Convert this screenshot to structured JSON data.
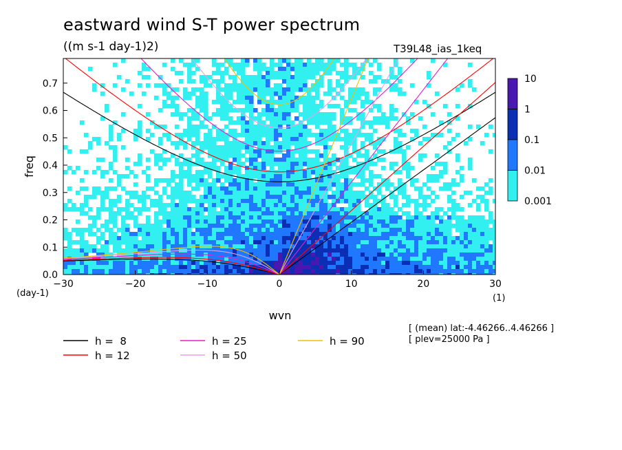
{
  "title": "eastward wind S-T power spectrum",
  "subtitle": "((m s-1 day-1)2)",
  "run_label": "T39L48_ias_1keq",
  "info": {
    "line1": "[ (mean) lat:-4.46266..4.46266 ]",
    "line2": "[ plev=25000 Pa ]"
  },
  "colors": {
    "lvl1": "#33f0f0",
    "lvl2": "#1f78ff",
    "lvl3": "#0a2fb4",
    "lvl4": "#4a18b0"
  },
  "chart_data": {
    "type": "heatmap",
    "xlabel": "wvn",
    "ylabel": "freq",
    "x_unit": "(1)",
    "y_unit": "(day-1)",
    "xlim": [
      -30,
      30
    ],
    "ylim": [
      0,
      0.79
    ],
    "x_ticks": [
      -30,
      -20,
      -10,
      0,
      10,
      20,
      30
    ],
    "x_tick_labels": [
      "−30",
      "−20",
      "−10",
      "0",
      "10",
      "20",
      "30"
    ],
    "y_ticks": [
      0,
      0.1,
      0.2,
      0.3,
      0.4,
      0.5,
      0.6,
      0.7
    ],
    "y_tick_labels": [
      "0.0",
      "0.1",
      "0.2",
      "0.3",
      "0.4",
      "0.5",
      "0.6",
      "0.7"
    ],
    "colorbar": {
      "levels": [
        0.001,
        0.01,
        0.1,
        1,
        10
      ],
      "labels": [
        "0.001",
        "0.01",
        "0.1",
        "1",
        "10"
      ]
    },
    "dispersion_curves": [
      {
        "name": "h =  8",
        "h": 8,
        "color": "#000000",
        "column": 0
      },
      {
        "name": "h = 12",
        "h": 12,
        "color": "#ff0000",
        "column": 0
      },
      {
        "name": "h = 25",
        "h": 25,
        "color": "#e020c8",
        "column": 1
      },
      {
        "name": "h = 50",
        "h": 50,
        "color": "#e8a0e8",
        "column": 1
      },
      {
        "name": "h = 90",
        "h": 90,
        "color": "#f0c000",
        "column": 2
      }
    ]
  }
}
